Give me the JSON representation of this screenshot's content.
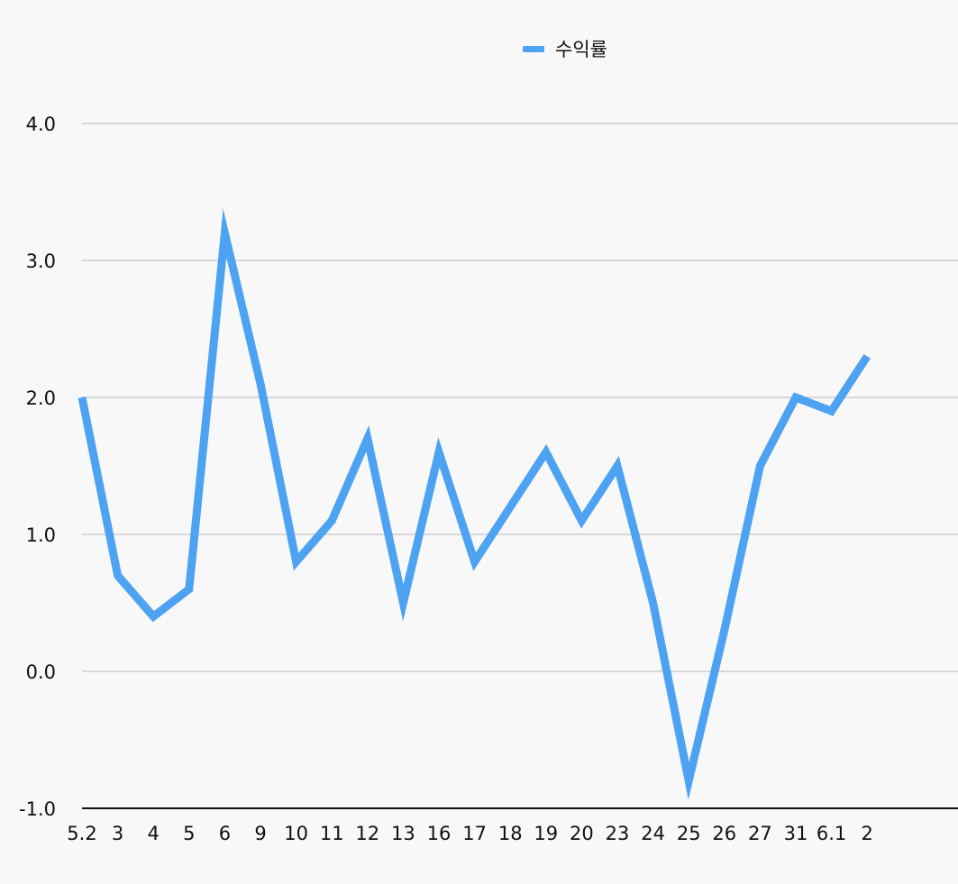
{
  "chart_data": {
    "type": "line",
    "categories": [
      "5.2",
      "3",
      "4",
      "5",
      "6",
      "9",
      "10",
      "11",
      "12",
      "13",
      "16",
      "17",
      "18",
      "19",
      "20",
      "23",
      "24",
      "25",
      "26",
      "27",
      "31",
      "6.1",
      "2"
    ],
    "series": [
      {
        "name": "수익률",
        "values": [
          2.0,
          0.7,
          0.4,
          0.6,
          3.2,
          2.1,
          0.8,
          1.1,
          1.7,
          0.5,
          1.6,
          0.8,
          1.2,
          1.6,
          1.1,
          1.5,
          0.5,
          -0.8,
          0.3,
          1.5,
          2.0,
          1.9,
          2.3
        ]
      }
    ],
    "yticks": [
      "-1.0",
      "0.0",
      "1.0",
      "2.0",
      "3.0",
      "4.0"
    ],
    "ylim": [
      -1.0,
      4.0
    ],
    "grid": true,
    "legend": "top-center",
    "colors": {
      "series": "#4da3f2",
      "grid": "#c4c4c4",
      "axis": "#111111"
    }
  }
}
